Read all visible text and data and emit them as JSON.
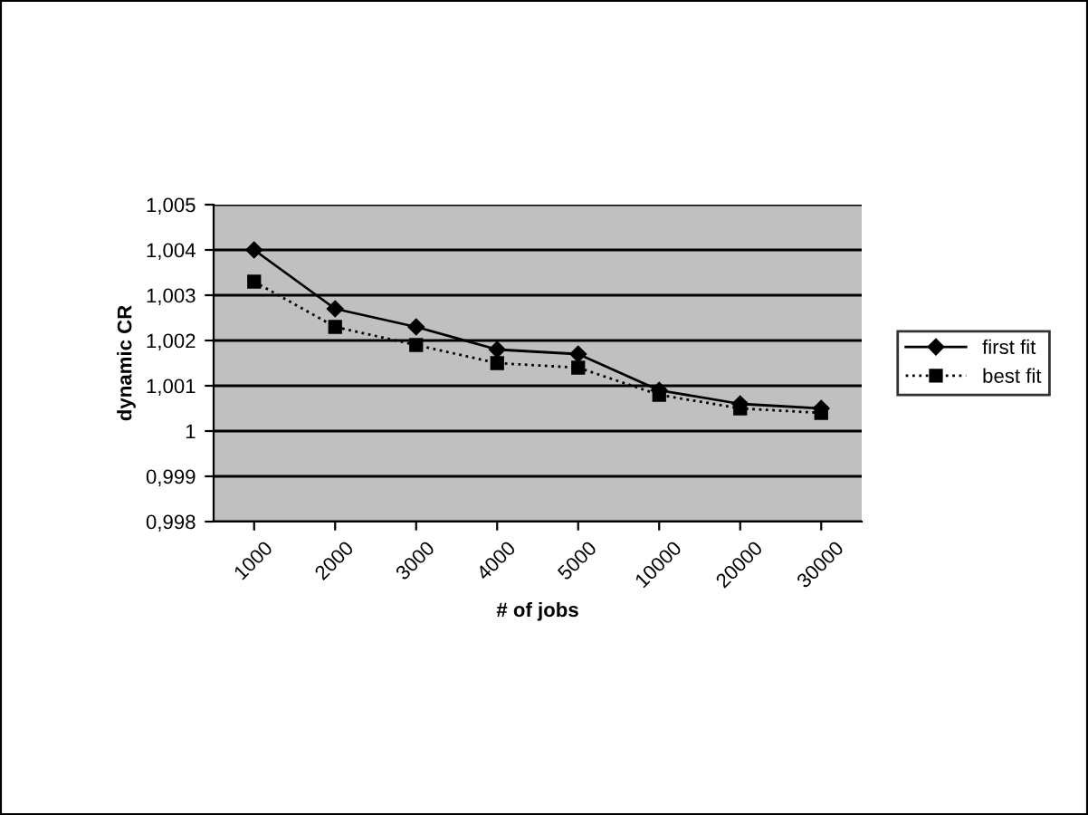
{
  "chart_data": {
    "type": "line",
    "xlabel": "# of jobs",
    "ylabel": "dynamic CR",
    "categories": [
      "1000",
      "2000",
      "3000",
      "4000",
      "5000",
      "10000",
      "20000",
      "30000"
    ],
    "series": [
      {
        "name": "first fit",
        "color": "#000000",
        "marker": "diamond",
        "line_style": "solid",
        "values": [
          1.004,
          1.0027,
          1.0023,
          1.0018,
          1.0017,
          1.0009,
          1.0006,
          1.0005
        ]
      },
      {
        "name": "best fit",
        "color": "#000000",
        "marker": "square",
        "line_style": "dotted",
        "values": [
          1.0033,
          1.0023,
          1.0019,
          1.0015,
          1.0014,
          1.0008,
          1.0005,
          1.0004
        ]
      }
    ],
    "ylim": [
      0.998,
      1.005
    ],
    "yticks": [
      {
        "value": 0.998,
        "label": "0,998"
      },
      {
        "value": 0.999,
        "label": "0,999"
      },
      1,
      {
        "value": 1.001,
        "label": "1,001"
      },
      {
        "value": 1.002,
        "label": "1,002"
      },
      {
        "value": 1.003,
        "label": "1,003"
      },
      {
        "value": 1.004,
        "label": "1,004"
      },
      {
        "value": 1.005,
        "label": "1,005"
      }
    ],
    "grid": "y",
    "legend": "right"
  }
}
